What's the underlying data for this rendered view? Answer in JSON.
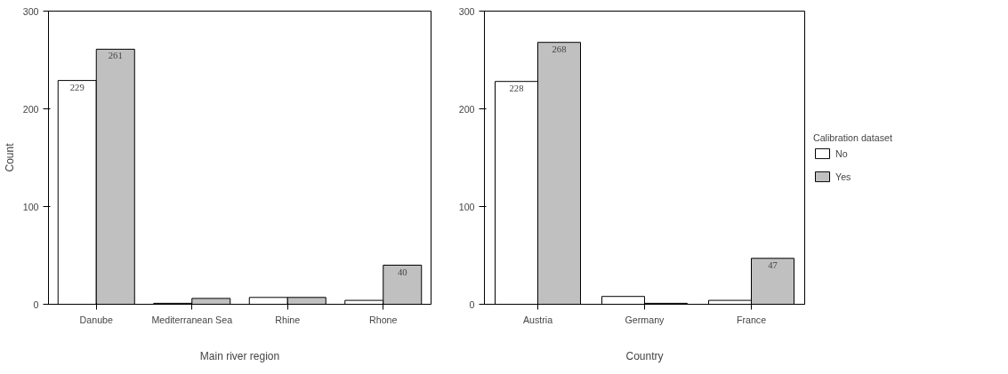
{
  "chart_data": [
    {
      "type": "bar",
      "xlabel": "Main river region",
      "ylabel": "Count",
      "categories": [
        "Danube",
        "Mediterranean Sea",
        "Rhine",
        "Rhone"
      ],
      "ylim": [
        0,
        300
      ],
      "yticks": [
        0,
        100,
        200,
        300
      ],
      "grid": false,
      "legend": false,
      "series": [
        {
          "color": "#ffffff",
          "values": [
            229,
            1,
            7,
            4
          ],
          "value_labels": [
            "229",
            null,
            null,
            null
          ]
        },
        {
          "color": "#c0c0c0",
          "values": [
            261,
            6,
            7,
            40
          ],
          "value_labels": [
            "261",
            null,
            null,
            "40"
          ]
        }
      ]
    },
    {
      "type": "bar",
      "xlabel": "Country",
      "legend_title": "Calibration dataset",
      "categories": [
        "Austria",
        "Germany",
        "France"
      ],
      "ylim": [
        0,
        300
      ],
      "yticks": [
        0,
        100,
        200,
        300
      ],
      "grid": false,
      "legend": "right",
      "series": [
        {
          "name": "No",
          "color": "#ffffff",
          "values": [
            228,
            8,
            4
          ],
          "value_labels": [
            "228",
            null,
            null
          ]
        },
        {
          "name": "Yes",
          "color": "#c0c0c0",
          "values": [
            268,
            1,
            47
          ],
          "value_labels": [
            "268",
            null,
            "47"
          ]
        }
      ]
    }
  ]
}
